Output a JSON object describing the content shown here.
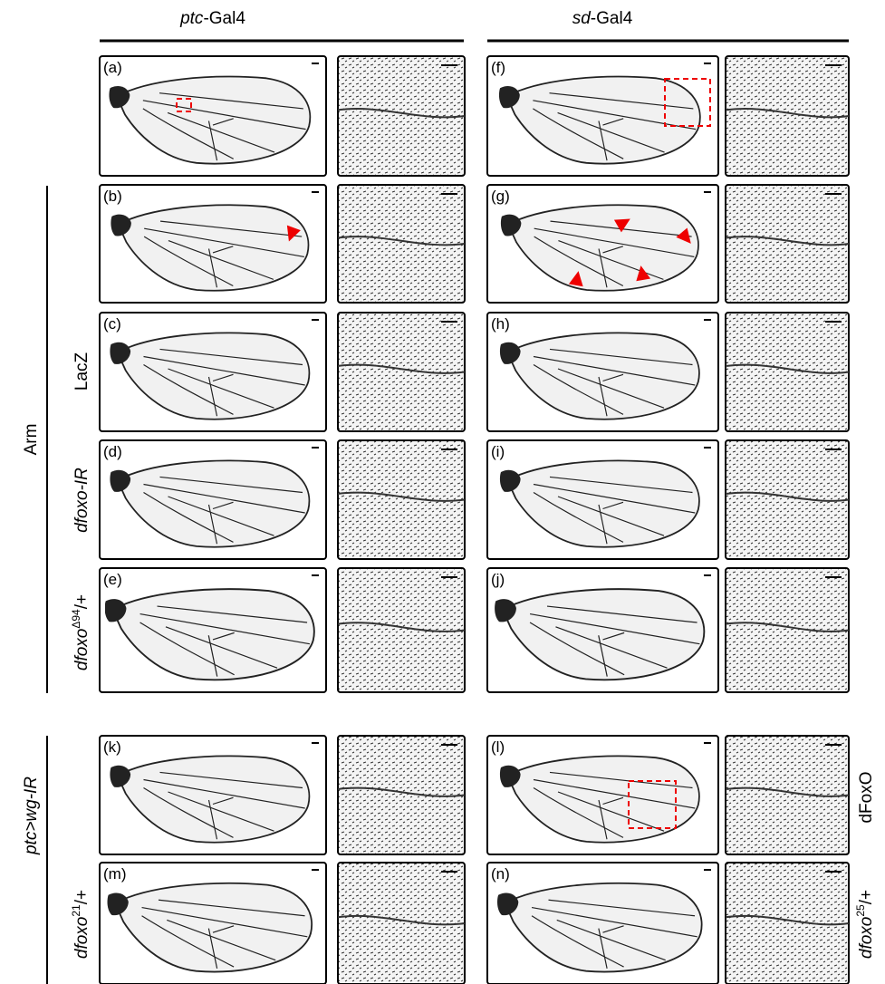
{
  "header": {
    "left": {
      "gene": "ptc",
      "driver": "-Gal4"
    },
    "right": {
      "gene": "sd",
      "driver": "-Gal4"
    }
  },
  "panels": [
    "(a)",
    "(b)",
    "(c)",
    "(d)",
    "(e)",
    "(f)",
    "(g)",
    "(h)",
    "(i)",
    "(j)",
    "(k)",
    "(l)",
    "(m)",
    "(n)"
  ],
  "row_labels": {
    "arm": "Arm",
    "lacz": "LacZ",
    "dfoxo_ir": "dfoxo-IR",
    "dfoxo94": {
      "base": "dfoxo",
      "sup": "Δ94",
      "suffix": "/+"
    },
    "ptc_wg": "ptc>wg-IR",
    "dfoxo21": {
      "base": "dfoxo",
      "sup": "21",
      "suffix": "/+"
    },
    "dfoxo_oe": "dFoxO",
    "dfoxo25": {
      "base": "dfoxo",
      "sup": "25",
      "suffix": "/+"
    }
  }
}
